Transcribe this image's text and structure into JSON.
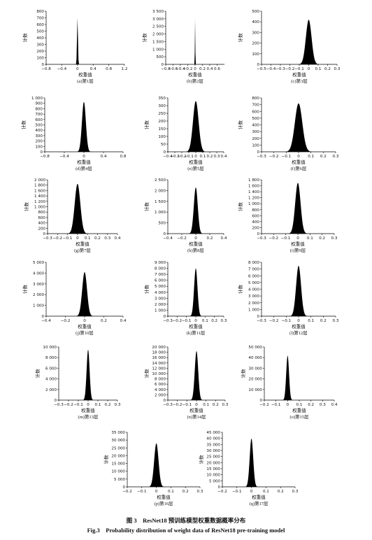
{
  "figure": {
    "caption_cn": "图 3　ResNet18 预训练模型权重数据概率分布",
    "caption_en": "Fig.3　Probability distribution of weight data of ResNet18 pre-training model"
  },
  "chart_data": [
    {
      "type": "histogram",
      "label": "(a)第1层",
      "xlabel": "权重值",
      "ylabel": "计数",
      "xlim": [
        -0.8,
        1.2
      ],
      "ylim": [
        0,
        800
      ],
      "xticks": [
        "−0.8",
        "−0.4",
        "0",
        "0.4",
        "0.8",
        "1.2"
      ],
      "xtick_values": [
        -0.8,
        -0.4,
        0,
        0.4,
        0.8,
        1.2
      ],
      "yticks": [
        "0",
        "100",
        "200",
        "300",
        "400",
        "500",
        "600",
        "700",
        "800"
      ],
      "ytick_values": [
        0,
        100,
        200,
        300,
        400,
        500,
        600,
        700,
        800
      ],
      "peak": {
        "x": 0.0,
        "count": 700,
        "sigma": 0.012
      }
    },
    {
      "type": "histogram",
      "label": "(b)第2层",
      "xlabel": "权重值",
      "ylabel": "计数",
      "xlim": [
        -0.8,
        0.8
      ],
      "ylim": [
        0,
        3500
      ],
      "xticks": [
        "−0.8",
        "−0.6",
        "−0.4",
        "−0.2",
        "0",
        "0.2",
        "0.4",
        "0.6"
      ],
      "xtick_values": [
        -0.8,
        -0.6,
        -0.4,
        -0.2,
        0,
        0.2,
        0.4,
        0.6
      ],
      "yticks": [
        "0",
        "500",
        "1 000",
        "1 500",
        "2 000",
        "2 500",
        "3 000",
        "3 500"
      ],
      "ytick_values": [
        0,
        500,
        1000,
        1500,
        2000,
        2500,
        3000,
        3500
      ],
      "peak": {
        "x": 0.0,
        "count": 3000,
        "sigma": 0.006
      }
    },
    {
      "type": "histogram",
      "label": "(c)第3层",
      "xlabel": "权重值",
      "ylabel": "计数",
      "xlim": [
        -0.5,
        0.3
      ],
      "ylim": [
        0,
        500
      ],
      "xticks": [
        "−0.5",
        "−0.4",
        "−0.3",
        "−0.2",
        "−0.1",
        "0",
        "0.1",
        "0.2",
        "0.3"
      ],
      "xtick_values": [
        -0.5,
        -0.4,
        -0.3,
        -0.2,
        -0.1,
        0,
        0.1,
        0.2,
        0.3
      ],
      "yticks": [
        "0",
        "100",
        "200",
        "300",
        "400",
        "500"
      ],
      "ytick_values": [
        0,
        100,
        200,
        300,
        400,
        500
      ],
      "peak": {
        "x": 0.0,
        "count": 420,
        "sigma": 0.03
      }
    },
    {
      "type": "histogram",
      "label": "(d)第4层",
      "xlabel": "权重值",
      "ylabel": "计数",
      "xlim": [
        -0.8,
        0.8
      ],
      "ylim": [
        0,
        1000
      ],
      "xticks": [
        "−0.8",
        "−0.4",
        "0",
        "0.4",
        "0.8"
      ],
      "xtick_values": [
        -0.8,
        -0.4,
        0,
        0.4,
        0.8
      ],
      "yticks": [
        "0",
        "100",
        "200",
        "300",
        "400",
        "500",
        "600",
        "700",
        "800",
        "900",
        "1 000"
      ],
      "ytick_values": [
        0,
        100,
        200,
        300,
        400,
        500,
        600,
        700,
        800,
        900,
        1000
      ],
      "peak": {
        "x": 0.0,
        "count": 930,
        "sigma": 0.04
      }
    },
    {
      "type": "histogram",
      "label": "(e)第5层",
      "xlabel": "权重值",
      "ylabel": "计数",
      "xlim": [
        -0.4,
        0.4
      ],
      "ylim": [
        0,
        350
      ],
      "xticks": [
        "−0.4",
        "−0.3",
        "−0.2",
        "−0.1",
        "0",
        "0.1",
        "0.2",
        "0.3",
        "0.4"
      ],
      "xtick_values": [
        -0.4,
        -0.3,
        -0.2,
        -0.1,
        0,
        0.1,
        0.2,
        0.3,
        0.4
      ],
      "yticks": [
        "0",
        "50",
        "100",
        "150",
        "200",
        "250",
        "300",
        "350"
      ],
      "ytick_values": [
        0,
        50,
        100,
        150,
        200,
        250,
        300,
        350
      ],
      "peak": {
        "x": 0.0,
        "count": 330,
        "sigma": 0.04
      }
    },
    {
      "type": "histogram",
      "label": "(f)第6层",
      "xlabel": "权重值",
      "ylabel": "计数",
      "xlim": [
        -0.3,
        0.3
      ],
      "ylim": [
        0,
        800
      ],
      "xticks": [
        "−0.3",
        "−0.2",
        "−0.1",
        "0",
        "0.1",
        "0.2",
        "0.3"
      ],
      "xtick_values": [
        -0.3,
        -0.2,
        -0.1,
        0,
        0.1,
        0.2,
        0.3
      ],
      "yticks": [
        "0",
        "100",
        "200",
        "300",
        "400",
        "500",
        "600",
        "700",
        "800"
      ],
      "ytick_values": [
        0,
        100,
        200,
        300,
        400,
        500,
        600,
        700,
        800
      ],
      "peak": {
        "x": 0.0,
        "count": 720,
        "sigma": 0.03
      }
    },
    {
      "type": "histogram",
      "label": "(g)第7层",
      "xlabel": "权重值",
      "ylabel": "计数",
      "xlim": [
        -0.3,
        0.4
      ],
      "ylim": [
        0,
        2000
      ],
      "xticks": [
        "−0.3",
        "−0.2",
        "−0.1",
        "0",
        "0.1",
        "0.2",
        "0.3",
        "0.4"
      ],
      "xtick_values": [
        -0.3,
        -0.2,
        -0.1,
        0,
        0.1,
        0.2,
        0.3,
        0.4
      ],
      "yticks": [
        "0",
        "200",
        "400",
        "600",
        "800",
        "1 000",
        "1 200",
        "1 400",
        "1 600",
        "1 800",
        "2 000"
      ],
      "ytick_values": [
        0,
        200,
        400,
        600,
        800,
        1000,
        1200,
        1400,
        1600,
        1800,
        2000
      ],
      "peak": {
        "x": 0.0,
        "count": 1850,
        "sigma": 0.028
      }
    },
    {
      "type": "histogram",
      "label": "(h)第8层",
      "xlabel": "权重值",
      "ylabel": "计数",
      "xlim": [
        -0.4,
        0.4
      ],
      "ylim": [
        0,
        2500
      ],
      "xticks": [
        "−0.4",
        "−0.2",
        "0",
        "0.2",
        "0.4"
      ],
      "xtick_values": [
        -0.4,
        -0.2,
        0,
        0.2,
        0.4
      ],
      "yticks": [
        "0",
        "500",
        "1 000",
        "1 500",
        "2 000",
        "2 500"
      ],
      "ytick_values": [
        0,
        500,
        1000,
        1500,
        2000,
        2500
      ],
      "peak": {
        "x": 0.0,
        "count": 2150,
        "sigma": 0.028
      }
    },
    {
      "type": "histogram",
      "label": "(i)第9层",
      "xlabel": "权重值",
      "ylabel": "计数",
      "xlim": [
        -0.3,
        0.3
      ],
      "ylim": [
        0,
        1800
      ],
      "xticks": [
        "−0.3",
        "−0.2",
        "−0.1",
        "0",
        "0.1",
        "0.2",
        "0.3"
      ],
      "xtick_values": [
        -0.3,
        -0.2,
        -0.1,
        0,
        0.1,
        0.2,
        0.3
      ],
      "yticks": [
        "0",
        "200",
        "400",
        "600",
        "800",
        "1 000",
        "1 200",
        "1 400",
        "1 600",
        "1 800"
      ],
      "ytick_values": [
        0,
        200,
        400,
        600,
        800,
        1000,
        1200,
        1400,
        1600,
        1800
      ],
      "peak": {
        "x": 0.0,
        "count": 1700,
        "sigma": 0.022
      }
    },
    {
      "type": "histogram",
      "label": "(j)第10层",
      "xlabel": "权重值",
      "ylabel": "计数",
      "xlim": [
        -0.4,
        0.4
      ],
      "ylim": [
        0,
        5000
      ],
      "xticks": [
        "−0.4",
        "−0.2",
        "0",
        "0.2",
        "0.4"
      ],
      "xtick_values": [
        -0.4,
        -0.2,
        0,
        0.2,
        0.4
      ],
      "yticks": [
        "0",
        "1 000",
        "2 000",
        "3 000",
        "4 000",
        "5 000"
      ],
      "ytick_values": [
        0,
        1000,
        2000,
        3000,
        4000,
        5000
      ],
      "peak": {
        "x": 0.0,
        "count": 4100,
        "sigma": 0.025
      }
    },
    {
      "type": "histogram",
      "label": "(k)第11层",
      "xlabel": "权重值",
      "ylabel": "计数",
      "xlim": [
        -0.3,
        0.3
      ],
      "ylim": [
        0,
        9000
      ],
      "xticks": [
        "−0.3",
        "−0.2",
        "−0.1",
        "0",
        "0.1",
        "0.2",
        "0.3"
      ],
      "xtick_values": [
        -0.3,
        -0.2,
        -0.1,
        0,
        0.1,
        0.2,
        0.3
      ],
      "yticks": [
        "0",
        "1 000",
        "2 000",
        "3 000",
        "4 000",
        "5 000",
        "6 000",
        "7 000",
        "8 000",
        "9 000"
      ],
      "ytick_values": [
        0,
        1000,
        2000,
        3000,
        4000,
        5000,
        6000,
        7000,
        8000,
        9000
      ],
      "peak": {
        "x": 0.0,
        "count": 8000,
        "sigma": 0.018
      }
    },
    {
      "type": "histogram",
      "label": "(l)第12层",
      "xlabel": "权重值",
      "ylabel": "计数",
      "xlim": [
        -0.3,
        0.3
      ],
      "ylim": [
        0,
        8000
      ],
      "xticks": [
        "−0.3",
        "−0.2",
        "−0.1",
        "0",
        "0.1",
        "0.2",
        "0.3"
      ],
      "xtick_values": [
        -0.3,
        -0.2,
        -0.1,
        0,
        0.1,
        0.2,
        0.3
      ],
      "yticks": [
        "0",
        "1 000",
        "2 000",
        "3 000",
        "4 000",
        "5 000",
        "6 000",
        "7 000",
        "8 000"
      ],
      "ytick_values": [
        0,
        1000,
        2000,
        3000,
        4000,
        5000,
        6000,
        7000,
        8000
      ],
      "peak": {
        "x": 0.0,
        "count": 7500,
        "sigma": 0.02
      }
    },
    {
      "type": "histogram",
      "label": "(m)第13层",
      "xlabel": "权重值",
      "ylabel": "计数",
      "xlim": [
        -0.3,
        0.3
      ],
      "ylim": [
        0,
        10000
      ],
      "xticks": [
        "−0.3",
        "−0.2",
        "−0.1",
        "0",
        "0.1",
        "0.2",
        "0.3"
      ],
      "xtick_values": [
        -0.3,
        -0.2,
        -0.1,
        0,
        0.1,
        0.2,
        0.3
      ],
      "yticks": [
        "0",
        "2 000",
        "4 000",
        "6 000",
        "8 000",
        "10 000"
      ],
      "ytick_values": [
        0,
        2000,
        4000,
        6000,
        8000,
        10000
      ],
      "peak": {
        "x": 0.0,
        "count": 9500,
        "sigma": 0.015
      }
    },
    {
      "type": "histogram",
      "label": "(n)第14层",
      "xlabel": "权重值",
      "ylabel": "计数",
      "xlim": [
        -0.3,
        0.3
      ],
      "ylim": [
        0,
        20000
      ],
      "xticks": [
        "−0.3",
        "−0.2",
        "−0.1",
        "0",
        "0.1",
        "0.2",
        "0.3"
      ],
      "xtick_values": [
        -0.3,
        -0.2,
        -0.1,
        0,
        0.1,
        0.2,
        0.3
      ],
      "yticks": [
        "0",
        "2 000",
        "4 000",
        "6 000",
        "8 000",
        "10 000",
        "12 000",
        "14 000",
        "16 000",
        "18 000",
        "20 000"
      ],
      "ytick_values": [
        0,
        2000,
        4000,
        6000,
        8000,
        10000,
        12000,
        14000,
        16000,
        18000,
        20000
      ],
      "peak": {
        "x": 0.0,
        "count": 18500,
        "sigma": 0.018
      }
    },
    {
      "type": "histogram",
      "label": "(o)第15层",
      "xlabel": "权重值",
      "ylabel": "计数",
      "xlim": [
        -0.2,
        0.4
      ],
      "ylim": [
        0,
        50000
      ],
      "xticks": [
        "−0.2",
        "−0.1",
        "0",
        "0.1",
        "0.2",
        "0.3",
        "0.4"
      ],
      "xtick_values": [
        -0.2,
        -0.1,
        0,
        0.1,
        0.2,
        0.3,
        0.4
      ],
      "yticks": [
        "0",
        "10 000",
        "20 000",
        "30 000",
        "40 000",
        "50 000"
      ],
      "ytick_values": [
        0,
        10000,
        20000,
        30000,
        40000,
        50000
      ],
      "peak": {
        "x": 0.0,
        "count": 42000,
        "sigma": 0.012
      }
    },
    {
      "type": "histogram",
      "label": "(p)第16层",
      "xlabel": "权重值",
      "ylabel": "计数",
      "xlim": [
        -0.2,
        0.3
      ],
      "ylim": [
        0,
        35000
      ],
      "xticks": [
        "−0.2",
        "−0.1",
        "0",
        "0.1",
        "0.2",
        "0.3"
      ],
      "xtick_values": [
        -0.2,
        -0.1,
        0,
        0.1,
        0.2,
        0.3
      ],
      "yticks": [
        "0",
        "5 000",
        "10 000",
        "15 000",
        "20 000",
        "25 000",
        "30 000",
        "35 000"
      ],
      "ytick_values": [
        0,
        5000,
        10000,
        15000,
        20000,
        25000,
        30000,
        35000
      ],
      "peak": {
        "x": 0.0,
        "count": 28000,
        "sigma": 0.015
      }
    },
    {
      "type": "histogram",
      "label": "(q)第17层",
      "xlabel": "权重值",
      "ylabel": "计数",
      "xlim": [
        -0.2,
        0.3
      ],
      "ylim": [
        0,
        45000
      ],
      "xticks": [
        "−0.2",
        "−0.1",
        "0",
        "0.1",
        "0.2",
        "0.3"
      ],
      "xtick_values": [
        -0.2,
        -0.1,
        0,
        0.1,
        0.2,
        0.3
      ],
      "yticks": [
        "0",
        "5 000",
        "10 000",
        "15 000",
        "20 000",
        "25 000",
        "30 000",
        "35 000",
        "40 000",
        "45 000"
      ],
      "ytick_values": [
        0,
        5000,
        10000,
        15000,
        20000,
        25000,
        30000,
        35000,
        40000,
        45000
      ],
      "peak": {
        "x": 0.0,
        "count": 40000,
        "sigma": 0.012
      }
    }
  ]
}
